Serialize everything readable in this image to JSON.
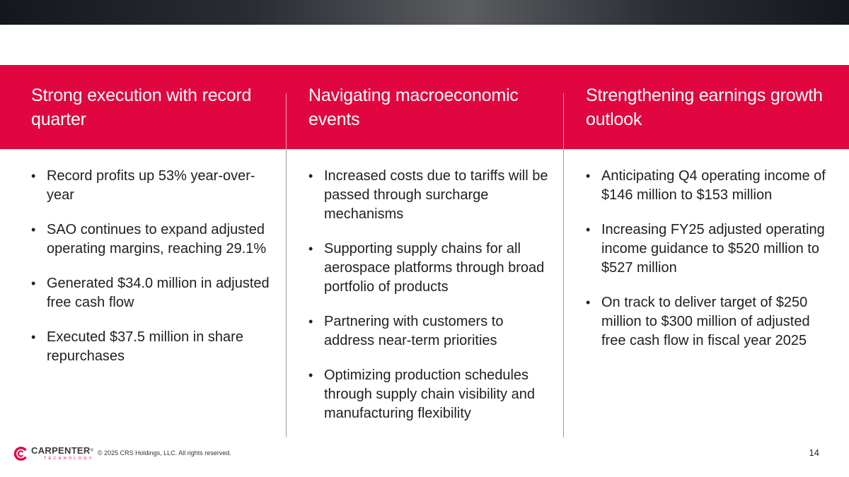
{
  "columns": [
    {
      "heading": "Strong execution with record quarter",
      "bullets": [
        "Record profits up 53% year-over-year",
        "SAO continues to expand adjusted operating margins, reaching 29.1%",
        "Generated $34.0 million in adjusted free cash flow",
        "Executed $37.5 million in share repurchases"
      ]
    },
    {
      "heading": "Navigating macroeconomic events",
      "bullets": [
        "Increased costs due to tariffs will be passed through surcharge mechanisms",
        "Supporting supply chains for all aerospace platforms through broad portfolio of products",
        "Partnering with customers to address near-term priorities",
        "Optimizing production schedules through supply chain visibility and manufacturing flexibility"
      ]
    },
    {
      "heading": "Strengthening earnings growth outlook",
      "bullets": [
        "Anticipating Q4 operating income of $146 million to $153 million",
        "Increasing FY25 adjusted operating income guidance to $520 million to $527 million",
        "On track to deliver target of $250 million to $300 million of adjusted free cash flow in fiscal year 2025"
      ]
    }
  ],
  "bullet_glyph": "•",
  "footer": {
    "logo_name": "CARPENTER",
    "logo_trademark": "®",
    "logo_sub": "TECHNOLOGY",
    "copyright": "© 2025 CRS Holdings, LLC. All rights reserved.",
    "page_number": "14"
  },
  "colors": {
    "accent": "#e1063f",
    "top_bar_dark": "#14181e",
    "divider": "#9a9a9a"
  }
}
